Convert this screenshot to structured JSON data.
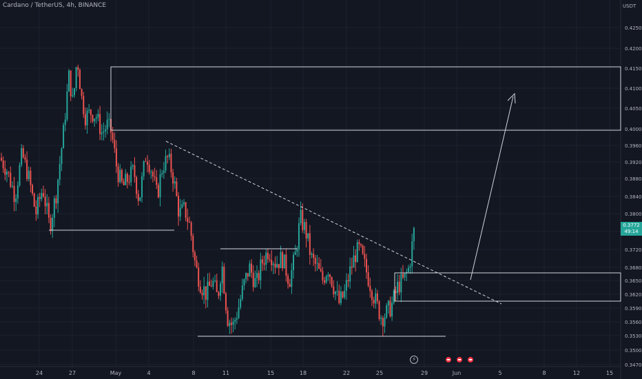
{
  "header": {
    "title": "Cardano / TetherUS, 4h, BINANCE",
    "currency": "USDT"
  },
  "price_badge": {
    "price": "0.3772",
    "countdown": "49:14"
  },
  "colors": {
    "background": "#131722",
    "up": "#26a69a",
    "down": "#ef5350",
    "lines": "#d1d4dc",
    "text": "#b2b5be"
  },
  "chart_data": {
    "type": "candlestick",
    "title": "Cardano / TetherUS, 4h, BINANCE",
    "ylabel": "USDT",
    "ylim": [
      0.347,
      0.429
    ],
    "y_ticks": [
      "0.4250",
      "0.4200",
      "0.4150",
      "0.4100",
      "0.4050",
      "0.4000",
      "0.3960",
      "0.3920",
      "0.3880",
      "0.3840",
      "0.3800",
      "0.3760",
      "0.3720",
      "0.3680",
      "0.3650",
      "0.3620",
      "0.3590",
      "0.3560",
      "0.3530",
      "0.3500",
      "0.3470"
    ],
    "x_ticks": [
      "24",
      "27",
      "May",
      "4",
      "8",
      "11",
      "15",
      "18",
      "22",
      "25",
      "29",
      "Jun",
      "5",
      "8",
      "12",
      "15"
    ],
    "candles_from": "Apr 22",
    "close_path": [
      [
        0,
        0.393
      ],
      [
        10,
        0.39
      ],
      [
        22,
        0.384
      ],
      [
        32,
        0.394
      ],
      [
        42,
        0.388
      ],
      [
        52,
        0.38
      ],
      [
        62,
        0.386
      ],
      [
        72,
        0.377
      ],
      [
        82,
        0.385
      ],
      [
        92,
        0.399
      ],
      [
        100,
        0.413
      ],
      [
        106,
        0.406
      ],
      [
        112,
        0.418
      ],
      [
        118,
        0.408
      ],
      [
        124,
        0.403
      ],
      [
        132,
        0.404
      ],
      [
        140,
        0.403
      ],
      [
        148,
        0.399
      ],
      [
        156,
        0.401
      ],
      [
        162,
        0.399
      ],
      [
        170,
        0.39
      ],
      [
        178,
        0.386
      ],
      [
        186,
        0.388
      ],
      [
        194,
        0.39
      ],
      [
        202,
        0.383
      ],
      [
        212,
        0.394
      ],
      [
        220,
        0.39
      ],
      [
        228,
        0.384
      ],
      [
        236,
        0.391
      ],
      [
        244,
        0.393
      ],
      [
        252,
        0.388
      ],
      [
        260,
        0.38
      ],
      [
        268,
        0.381
      ],
      [
        276,
        0.377
      ],
      [
        284,
        0.368
      ],
      [
        292,
        0.364
      ],
      [
        300,
        0.362
      ],
      [
        308,
        0.365
      ],
      [
        316,
        0.361
      ],
      [
        322,
        0.369
      ],
      [
        330,
        0.357
      ],
      [
        338,
        0.355
      ],
      [
        346,
        0.359
      ],
      [
        354,
        0.364
      ],
      [
        362,
        0.368
      ],
      [
        372,
        0.364
      ],
      [
        380,
        0.369
      ],
      [
        390,
        0.372
      ],
      [
        400,
        0.369
      ],
      [
        410,
        0.37
      ],
      [
        420,
        0.365
      ],
      [
        428,
        0.37
      ],
      [
        436,
        0.379
      ],
      [
        444,
        0.376
      ],
      [
        452,
        0.37
      ],
      [
        460,
        0.368
      ],
      [
        468,
        0.365
      ],
      [
        476,
        0.368
      ],
      [
        484,
        0.364
      ],
      [
        492,
        0.36
      ],
      [
        500,
        0.362
      ],
      [
        508,
        0.367
      ],
      [
        516,
        0.371
      ],
      [
        522,
        0.372
      ],
      [
        530,
        0.368
      ],
      [
        538,
        0.364
      ],
      [
        546,
        0.36
      ],
      [
        554,
        0.357
      ],
      [
        562,
        0.358
      ],
      [
        570,
        0.36
      ],
      [
        578,
        0.364
      ],
      [
        586,
        0.365
      ],
      [
        594,
        0.368
      ],
      [
        602,
        0.3772
      ]
    ],
    "annotations": [
      {
        "type": "box",
        "x_range": [
          "May 1",
          "right edge"
        ],
        "y_range": [
          0.399,
          0.416
        ]
      },
      {
        "type": "box",
        "x_range": [
          "May 26",
          "right edge"
        ],
        "y_range": [
          0.361,
          0.367
        ]
      },
      {
        "type": "segment",
        "y": 0.378,
        "label": ""
      },
      {
        "type": "segment",
        "y": 0.372,
        "label": ""
      },
      {
        "type": "segment",
        "y": 0.354,
        "label": ""
      },
      {
        "type": "trendline",
        "style": "dashed",
        "from": [
          0.397
        ],
        "to": [
          0.361
        ]
      },
      {
        "type": "arrow",
        "from": 0.366,
        "to": 0.409
      }
    ],
    "grid": true,
    "legend": "none"
  }
}
